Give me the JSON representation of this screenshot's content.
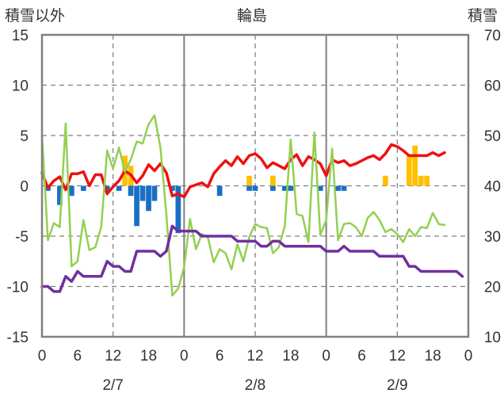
{
  "chart_data": {
    "type": "bar+line",
    "title": "輪島",
    "left_axis_label": "積雪以外",
    "right_axis_label": "積雪",
    "ylim_left": [
      -15,
      15
    ],
    "yticks_left": [
      "15",
      "10",
      "5",
      "0",
      "-5",
      "-10",
      "-15"
    ],
    "ylim_right": [
      10,
      70
    ],
    "yticks_right": [
      "70",
      "60",
      "50",
      "40",
      "30",
      "20",
      "10"
    ],
    "x_hours_range": [
      0,
      72
    ],
    "x_tick_labels": [
      "0",
      "6",
      "12",
      "18",
      "0",
      "6",
      "12",
      "18",
      "0",
      "6",
      "12",
      "18",
      "0"
    ],
    "date_labels": [
      {
        "label": "2/7",
        "hour": 12
      },
      {
        "label": "2/8",
        "hour": 36
      },
      {
        "label": "2/9",
        "hour": 60
      }
    ],
    "colors": {
      "red": "#ee1111",
      "green": "#92d050",
      "purple": "#7030a0",
      "gold": "#ffc000",
      "blue": "#1a6fc4",
      "frame": "#808080",
      "grid": "#808080"
    },
    "series": [
      {
        "axis": "left",
        "color": "red",
        "width": 3.5,
        "values": [
          1.3,
          -0.2,
          0.5,
          0.9,
          -0.4,
          1.2,
          1.2,
          1.4,
          0.0,
          1.1,
          1.1,
          -0.8,
          -0.1,
          0.5,
          1.5,
          1.1,
          0.3,
          1.0,
          2.1,
          1.5,
          2.2,
          1.3,
          -1.0,
          -0.8,
          -1.1,
          -0.1,
          0.1,
          0.3,
          -0.1,
          1.2,
          1.9,
          2.5,
          2.0,
          2.9,
          2.2,
          3.0,
          3.2,
          2.7,
          1.8,
          2.3,
          2.0,
          1.7,
          2.6,
          3.1,
          2.0,
          2.9,
          2.6,
          2.2,
          1.0,
          2.6,
          2.3,
          2.5,
          2.0,
          2.2,
          2.5,
          2.8,
          3.0,
          2.6,
          3.2,
          4.1,
          3.9,
          3.5,
          3.0,
          3.0,
          3.0,
          3.0,
          3.3,
          3.0,
          3.3
        ]
      },
      {
        "axis": "left",
        "color": "green",
        "width": 2.5,
        "values": [
          5.0,
          -5.4,
          -3.7,
          -4.1,
          6.2,
          -8.0,
          -7.5,
          -3.4,
          -6.4,
          -6.1,
          -4.1,
          3.5,
          1.7,
          3.8,
          1.4,
          2.6,
          4.4,
          4.2,
          6.1,
          7.0,
          3.8,
          -2.8,
          -10.9,
          -10.2,
          -8.1,
          -3.3,
          -6.3,
          -4.8,
          -5.1,
          -7.6,
          -6.3,
          -6.7,
          -8.3,
          -5.8,
          -7.5,
          -5.1,
          -3.8,
          -4.1,
          -4.2,
          -6.7,
          -6.1,
          -4.0,
          4.6,
          -2.8,
          -3.0,
          -5.6,
          5.3,
          -4.9,
          -3.4,
          3.7,
          -5.4,
          -3.8,
          -3.7,
          -4.1,
          -5.0,
          -3.2,
          -2.6,
          -3.4,
          -4.6,
          -4.3,
          -4.8,
          -5.6,
          -4.3,
          -5.0,
          -4.1,
          -4.2,
          -2.7,
          -3.8,
          -3.9
        ]
      },
      {
        "axis": "right",
        "color": "purple",
        "width": 3.5,
        "values": [
          20,
          20,
          19,
          19,
          22,
          21,
          23,
          22,
          22,
          22,
          22,
          25,
          24,
          24,
          23,
          23,
          27,
          27,
          27,
          27,
          26,
          27,
          32,
          31,
          31,
          31,
          31,
          30,
          30,
          30,
          30,
          30,
          30,
          29,
          29,
          29,
          29,
          28,
          28,
          29,
          29,
          28,
          28,
          28,
          28,
          28,
          28,
          28,
          27,
          27,
          27,
          28,
          27,
          27,
          27,
          27,
          27,
          26,
          26,
          26,
          26,
          26,
          24,
          24,
          23,
          23,
          23,
          23,
          23,
          23,
          23,
          22
        ]
      }
    ],
    "bars": [
      {
        "hour": 1,
        "value": -0.5,
        "color": "blue"
      },
      {
        "hour": 3,
        "value": -1.9,
        "color": "blue"
      },
      {
        "hour": 5,
        "value": -1.0,
        "color": "blue"
      },
      {
        "hour": 7,
        "value": -0.5,
        "color": "blue"
      },
      {
        "hour": 11,
        "value": -0.5,
        "color": "blue"
      },
      {
        "hour": 13,
        "value": -0.5,
        "color": "blue"
      },
      {
        "hour": 14,
        "value": 3.0,
        "color": "gold"
      },
      {
        "hour": 15,
        "value": 2.0,
        "color": "gold"
      },
      {
        "hour": 15,
        "value": -1.0,
        "color": "blue"
      },
      {
        "hour": 16,
        "value": -4.0,
        "color": "blue"
      },
      {
        "hour": 17,
        "value": -1.5,
        "color": "blue"
      },
      {
        "hour": 18,
        "value": -2.5,
        "color": "blue"
      },
      {
        "hour": 19,
        "value": -1.5,
        "color": "blue"
      },
      {
        "hour": 22,
        "value": -0.5,
        "color": "blue"
      },
      {
        "hour": 23,
        "value": -4.7,
        "color": "blue"
      },
      {
        "hour": 30,
        "value": -1.0,
        "color": "blue"
      },
      {
        "hour": 35,
        "value": 1.0,
        "color": "gold"
      },
      {
        "hour": 35,
        "value": -0.5,
        "color": "blue"
      },
      {
        "hour": 36,
        "value": -0.5,
        "color": "blue"
      },
      {
        "hour": 39,
        "value": 1.0,
        "color": "gold"
      },
      {
        "hour": 39,
        "value": -0.5,
        "color": "blue"
      },
      {
        "hour": 41,
        "value": -0.5,
        "color": "blue"
      },
      {
        "hour": 42,
        "value": -0.5,
        "color": "blue"
      },
      {
        "hour": 47,
        "value": -0.5,
        "color": "blue"
      },
      {
        "hour": 50,
        "value": -0.5,
        "color": "blue"
      },
      {
        "hour": 51,
        "value": -0.5,
        "color": "blue"
      },
      {
        "hour": 58,
        "value": 1.0,
        "color": "gold"
      },
      {
        "hour": 62,
        "value": 3.0,
        "color": "gold"
      },
      {
        "hour": 63,
        "value": 4.0,
        "color": "gold"
      },
      {
        "hour": 64,
        "value": 1.0,
        "color": "gold"
      },
      {
        "hour": 65,
        "value": 1.0,
        "color": "gold"
      }
    ]
  }
}
